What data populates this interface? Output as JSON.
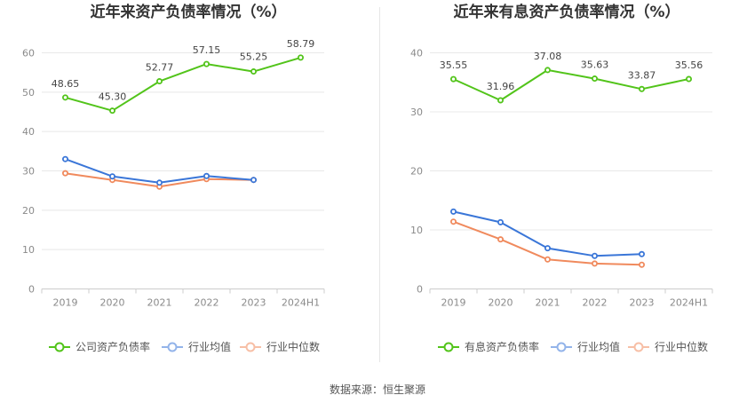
{
  "chart_data": [
    {
      "type": "line",
      "title": "近年来资产负债率情况（%）",
      "categories": [
        "2019",
        "2020",
        "2021",
        "2022",
        "2023",
        "2024H1"
      ],
      "ylim": [
        0,
        60
      ],
      "yticks": [
        0,
        10,
        20,
        30,
        40,
        50,
        60
      ],
      "grid": true,
      "legend_position": "bottom",
      "series": [
        {
          "name": "公司资产负债率",
          "color": "#52c41a",
          "values": [
            48.65,
            45.3,
            52.77,
            57.15,
            55.25,
            58.79
          ],
          "labels": [
            "48.65",
            "45.30",
            "52.77",
            "57.15",
            "55.25",
            "58.79"
          ]
        },
        {
          "name": "行业均值",
          "color": "#3a76d8",
          "values": [
            33.0,
            28.6,
            27.0,
            28.7,
            27.7,
            null
          ]
        },
        {
          "name": "行业中位数",
          "color": "#f08a5d",
          "values": [
            29.4,
            27.7,
            26.0,
            27.9,
            27.7,
            null
          ]
        }
      ]
    },
    {
      "type": "line",
      "title": "近年来有息资产负债率情况（%）",
      "categories": [
        "2019",
        "2020",
        "2021",
        "2022",
        "2023",
        "2024H1"
      ],
      "ylim": [
        0,
        40
      ],
      "yticks": [
        0,
        10,
        20,
        30,
        40
      ],
      "grid": true,
      "legend_position": "bottom",
      "series": [
        {
          "name": "有息资产负债率",
          "color": "#52c41a",
          "values": [
            35.55,
            31.96,
            37.08,
            35.63,
            33.87,
            35.56
          ],
          "labels": [
            "35.55",
            "31.96",
            "37.08",
            "35.63",
            "33.87",
            "35.56"
          ]
        },
        {
          "name": "行业均值",
          "color": "#3a76d8",
          "values": [
            13.1,
            11.3,
            6.9,
            5.6,
            5.9,
            null
          ]
        },
        {
          "name": "行业中位数",
          "color": "#f08a5d",
          "values": [
            11.4,
            8.4,
            5.0,
            4.3,
            4.1,
            null
          ]
        }
      ]
    }
  ],
  "source_text": "数据来源：恒生聚源"
}
